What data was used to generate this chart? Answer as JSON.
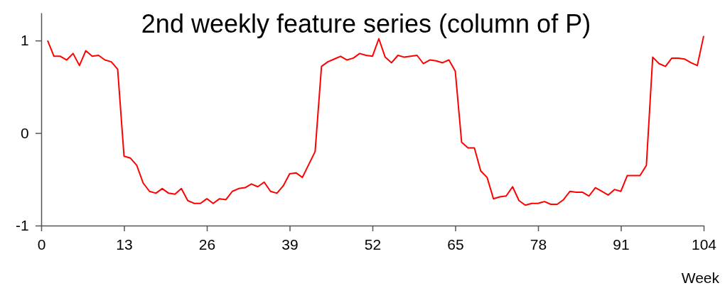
{
  "chart_data": {
    "type": "line",
    "title": "2nd weekly feature series (column of P)",
    "xlabel": "Week",
    "x": [
      1,
      2,
      3,
      4,
      5,
      6,
      7,
      8,
      9,
      10,
      11,
      12,
      13,
      14,
      15,
      16,
      17,
      18,
      19,
      20,
      21,
      22,
      23,
      24,
      25,
      26,
      27,
      28,
      29,
      30,
      31,
      32,
      33,
      34,
      35,
      36,
      37,
      38,
      39,
      40,
      41,
      42,
      43,
      44,
      45,
      46,
      47,
      48,
      49,
      50,
      51,
      52,
      53,
      54,
      55,
      56,
      57,
      58,
      59,
      60,
      61,
      62,
      63,
      64,
      65,
      66,
      67,
      68,
      69,
      70,
      71,
      72,
      73,
      74,
      75,
      76,
      77,
      78,
      79,
      80,
      81,
      82,
      83,
      84,
      85,
      86,
      87,
      88,
      89,
      90,
      91,
      92,
      93,
      94,
      95,
      96,
      97,
      98,
      99,
      100,
      101,
      102,
      103,
      104
    ],
    "series": [
      {
        "color": "#ff0000",
        "values": [
          1.0,
          0.83,
          0.83,
          0.79,
          0.86,
          0.73,
          0.89,
          0.83,
          0.84,
          0.79,
          0.77,
          0.69,
          -0.25,
          -0.27,
          -0.35,
          -0.54,
          -0.63,
          -0.65,
          -0.6,
          -0.65,
          -0.66,
          -0.6,
          -0.73,
          -0.76,
          -0.76,
          -0.71,
          -0.76,
          -0.71,
          -0.72,
          -0.63,
          -0.6,
          -0.59,
          -0.55,
          -0.58,
          -0.53,
          -0.63,
          -0.65,
          -0.57,
          -0.44,
          -0.43,
          -0.48,
          -0.34,
          -0.2,
          0.72,
          0.77,
          0.8,
          0.83,
          0.79,
          0.81,
          0.86,
          0.84,
          0.83,
          1.02,
          0.82,
          0.76,
          0.84,
          0.82,
          0.83,
          0.84,
          0.75,
          0.79,
          0.78,
          0.76,
          0.79,
          0.67,
          -0.1,
          -0.16,
          -0.16,
          -0.41,
          -0.48,
          -0.71,
          -0.69,
          -0.68,
          -0.58,
          -0.73,
          -0.78,
          -0.76,
          -0.76,
          -0.74,
          -0.77,
          -0.77,
          -0.72,
          -0.63,
          -0.64,
          -0.64,
          -0.68,
          -0.59,
          -0.63,
          -0.67,
          -0.61,
          -0.63,
          -0.46,
          -0.46,
          -0.46,
          -0.35,
          0.82,
          0.75,
          0.72,
          0.81,
          0.81,
          0.8,
          0.76,
          0.73,
          1.05
        ]
      }
    ],
    "xlim": [
      0,
      104
    ],
    "xticks": [
      0,
      13,
      26,
      39,
      52,
      65,
      78,
      91,
      104
    ],
    "ylim": [
      -1,
      1.3
    ],
    "yticks": [
      -1,
      0,
      1
    ],
    "grid": false,
    "marker": "none",
    "line_style": "solid"
  }
}
